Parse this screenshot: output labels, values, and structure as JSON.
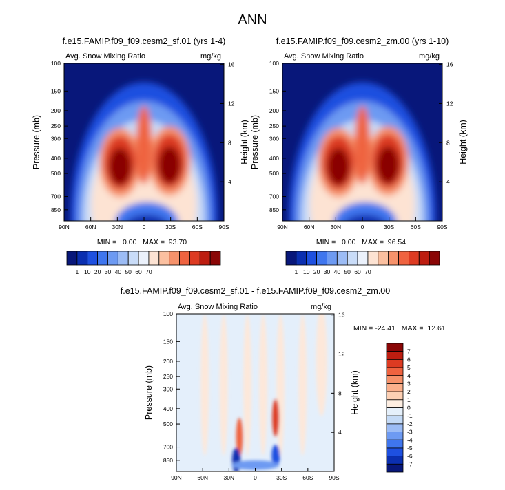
{
  "figure": {
    "title": "ANN"
  },
  "chart_data": [
    {
      "type": "heatmap",
      "title": "f.e15.FAMIP.f09_f09.cesm2_sf.01 (yrs 1-4)",
      "left_header": "Avg. Snow Mixing Ratio",
      "right_header": "mg/kg",
      "ylabel": "Pressure (mb)",
      "ylabel_right": "Height (km)",
      "x_ticks": [
        "90N",
        "60N",
        "30N",
        "0",
        "30S",
        "60S",
        "90S"
      ],
      "y_ticks": [
        "100",
        "150",
        "200",
        "250",
        "300",
        "400",
        "500",
        "700",
        "850"
      ],
      "y_ticks_right": [
        "16",
        "12",
        "8",
        "4"
      ],
      "stats": "MIN =   0.00   MAX =  93.70",
      "min": 0.0,
      "max": 93.7,
      "ylim": [
        100,
        1000
      ],
      "xlim": [
        90,
        -90
      ],
      "colorbar_labels": [
        "1",
        "10",
        "20",
        "30",
        "40",
        "50",
        "60",
        "70"
      ],
      "features": [
        {
          "name": "nh-max",
          "lat": 33,
          "p": 560,
          "value": 93.7
        },
        {
          "name": "sh-max",
          "lat": -30,
          "p": 560,
          "value": 90
        }
      ]
    },
    {
      "type": "heatmap",
      "title": "f.e15.FAMIP.f09_f09.cesm2_zm.00 (yrs 1-10)",
      "left_header": "Avg. Snow Mixing Ratio",
      "right_header": "mg/kg",
      "ylabel": "Pressure (mb)",
      "ylabel_right": "Height (km)",
      "x_ticks": [
        "90N",
        "60N",
        "30N",
        "0",
        "30S",
        "60S",
        "90S"
      ],
      "y_ticks": [
        "100",
        "150",
        "200",
        "250",
        "300",
        "400",
        "500",
        "700",
        "850"
      ],
      "y_ticks_right": [
        "16",
        "12",
        "8",
        "4"
      ],
      "stats": "MIN =   0.00   MAX =  96.54",
      "min": 0.0,
      "max": 96.54,
      "ylim": [
        100,
        1000
      ],
      "xlim": [
        90,
        -90
      ],
      "colorbar_labels": [
        "1",
        "10",
        "20",
        "30",
        "40",
        "50",
        "60",
        "70"
      ],
      "features": [
        {
          "name": "nh-max",
          "lat": 33,
          "p": 560,
          "value": 96.54
        },
        {
          "name": "sh-max",
          "lat": -30,
          "p": 560,
          "value": 92
        }
      ]
    },
    {
      "type": "heatmap",
      "title": "f.e15.FAMIP.f09_f09.cesm2_sf.01 - f.e15.FAMIP.f09_f09.cesm2_zm.00",
      "left_header": "Avg. Snow Mixing Ratio",
      "right_header": "mg/kg",
      "ylabel": "Pressure (mb)",
      "ylabel_right": "Height (km)",
      "x_ticks": [
        "90N",
        "60N",
        "30N",
        "0",
        "30S",
        "60S",
        "90S"
      ],
      "y_ticks": [
        "100",
        "150",
        "200",
        "250",
        "300",
        "400",
        "500",
        "700",
        "850"
      ],
      "y_ticks_right": [
        "16",
        "12",
        "8",
        "4"
      ],
      "stats": "MIN = -24.41   MAX =  12.61",
      "min": -24.41,
      "max": 12.61,
      "ylim": [
        100,
        1000
      ],
      "xlim": [
        90,
        -90
      ],
      "colorbar_labels": [
        "7",
        "6",
        "5",
        "4",
        "3",
        "2",
        "1",
        "0",
        "-1",
        "-2",
        "-3",
        "-4",
        "-5",
        "-6",
        "-7"
      ]
    }
  ],
  "colors": {
    "abs_scale": [
      "#08177a",
      "#0b2fb0",
      "#1e50e0",
      "#3f76ee",
      "#6d9af2",
      "#9cbcf5",
      "#c9dcf8",
      "#ebf1fb",
      "#fde3d3",
      "#fbc0a0",
      "#f6926b",
      "#ef6340",
      "#dd3b22",
      "#bd1d10",
      "#8a0606"
    ],
    "diff_scale": [
      "#8a0606",
      "#bd1d10",
      "#dd3b22",
      "#ef6340",
      "#f6926b",
      "#fbb08c",
      "#fdd0b4",
      "#fdeee2",
      "#e5f0fb",
      "#c4daf6",
      "#9cbcf5",
      "#6d9af2",
      "#3f76ee",
      "#1e50e0",
      "#0b2fb0",
      "#08177a"
    ]
  }
}
